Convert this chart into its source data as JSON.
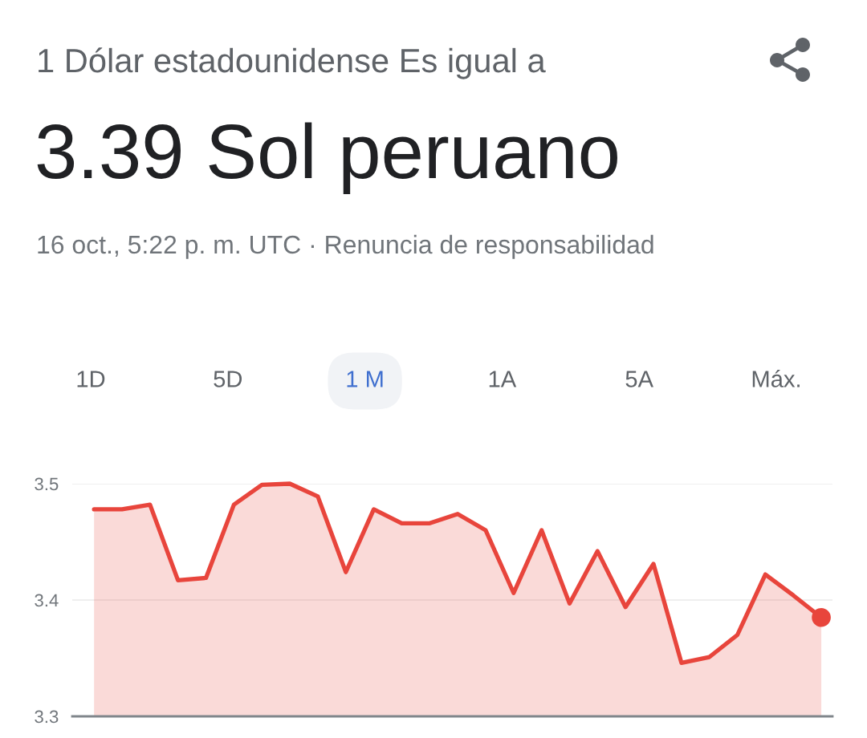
{
  "chart_data": {
    "type": "area",
    "title": "1 Dólar estadounidense Es igual a",
    "subtitle": "3.39 Sol peruano",
    "annotations": [
      "16 oct., 5:22 p. m. UTC · Renuncia de responsabilidad",
      "1D",
      "5D",
      "1 M",
      "1A",
      "5A",
      "Máx."
    ],
    "categories": [
      null,
      null,
      null,
      null,
      null,
      null,
      null,
      null,
      null,
      null,
      null,
      null,
      null,
      null,
      null,
      null,
      null,
      null,
      null,
      null,
      null,
      null,
      null,
      null,
      null,
      null,
      null
    ],
    "series": [
      {
        "color": "#e8453c",
        "values": [
          3.478,
          3.478,
          3.482,
          3.417,
          3.419,
          3.482,
          3.499,
          3.5,
          3.489,
          3.424,
          3.478,
          3.466,
          3.466,
          3.474,
          3.46,
          3.406,
          3.46,
          3.397,
          3.442,
          3.394,
          3.431,
          3.346,
          3.351,
          3.37,
          3.422,
          3.404,
          3.385
        ]
      },
      {
        "type": "scatter",
        "color": "#e8453c",
        "values": [
          null,
          null,
          null,
          null,
          null,
          null,
          null,
          null,
          null,
          null,
          null,
          null,
          null,
          null,
          null,
          null,
          null,
          null,
          null,
          null,
          null,
          null,
          null,
          null,
          null,
          null,
          3.385
        ]
      }
    ],
    "ylim": [
      3.3,
      3.5
    ],
    "yticks": [
      3.3,
      3.4,
      3.5
    ],
    "grid": "y",
    "tick_labels": "y"
  }
}
